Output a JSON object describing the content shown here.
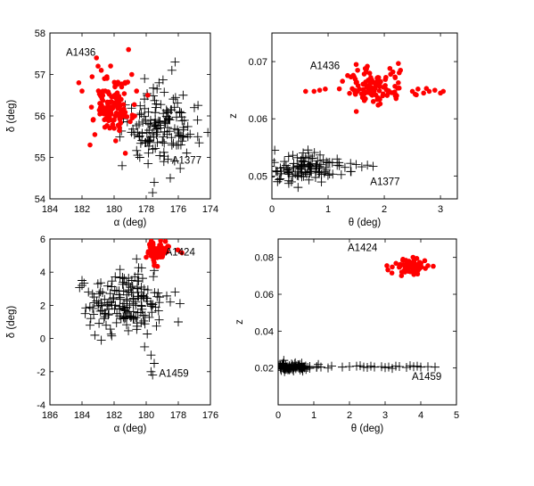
{
  "chart_data": [
    {
      "type": "scatter",
      "xlabel": "α (deg)",
      "ylabel": "δ (deg)",
      "xlim": [
        184,
        174
      ],
      "ylim": [
        54,
        58
      ],
      "xticks": [
        184,
        182,
        180,
        178,
        176,
        174
      ],
      "yticks": [
        54,
        55,
        56,
        57,
        58
      ],
      "annotations": [
        {
          "text": "A1436",
          "x": 183.0,
          "y": 57.45
        },
        {
          "text": "A1377",
          "x": 176.4,
          "y": 54.85
        }
      ],
      "series": [
        {
          "marker": "dot",
          "color": "#ff0000",
          "cluster": {
            "cx": 180.1,
            "cy": 56.25,
            "sx": 0.55,
            "sy": 0.35,
            "n": 120,
            "seed": 11
          },
          "extra_points": [
            [
              181.1,
              57.4
            ],
            [
              181.0,
              57.2
            ],
            [
              180.8,
              57.1
            ],
            [
              179.1,
              57.6
            ],
            [
              180.6,
              56.9
            ],
            [
              182.0,
              56.6
            ],
            [
              181.5,
              55.3
            ],
            [
              181.2,
              55.55
            ],
            [
              179.9,
              55.4
            ],
            [
              179.3,
              55.1
            ],
            [
              178.6,
              56.6
            ],
            [
              177.9,
              56.5
            ],
            [
              178.9,
              57.0
            ],
            [
              182.2,
              56.8
            ],
            [
              180.3,
              55.9
            ]
          ]
        },
        {
          "marker": "plus",
          "color": "#000000",
          "cluster": {
            "cx": 177.0,
            "cy": 55.7,
            "sx": 1.05,
            "sy": 0.38,
            "n": 140,
            "seed": 23
          },
          "extra_points": [
            [
              176.2,
              57.3
            ],
            [
              176.4,
              57.1
            ],
            [
              177.2,
              56.8
            ],
            [
              178.1,
              56.9
            ],
            [
              175.0,
              56.2
            ],
            [
              174.8,
              55.9
            ],
            [
              175.4,
              55.5
            ],
            [
              177.5,
              54.4
            ],
            [
              177.6,
              54.15
            ],
            [
              176.5,
              54.5
            ],
            [
              179.5,
              54.8
            ],
            [
              176.9,
              54.9
            ],
            [
              175.7,
              56.5
            ],
            [
              178.4,
              55.0
            ]
          ]
        }
      ]
    },
    {
      "type": "scatter",
      "xlabel": "θ (deg)",
      "ylabel": "z",
      "xlim": [
        0,
        3.3
      ],
      "ylim": [
        0.046,
        0.075
      ],
      "xticks": [
        0,
        1,
        2,
        3
      ],
      "yticks": [
        0.05,
        0.06,
        0.07
      ],
      "ytick_labels": [
        "0.05",
        "0.06",
        "0.07"
      ],
      "annotations": [
        {
          "text": "A1436",
          "x": 0.68,
          "y": 0.0687
        },
        {
          "text": "A1377",
          "x": 1.75,
          "y": 0.0484
        }
      ],
      "series": [
        {
          "marker": "dot",
          "color": "#ff0000",
          "cluster": {
            "cx": 1.8,
            "cy": 0.0655,
            "sx": 0.28,
            "sy": 0.0017,
            "n": 110,
            "seed": 31
          },
          "extra_points": [
            [
              0.6,
              0.0648
            ],
            [
              0.75,
              0.0648
            ],
            [
              0.85,
              0.065
            ],
            [
              0.95,
              0.0652
            ],
            [
              2.5,
              0.0648
            ],
            [
              2.6,
              0.0652
            ],
            [
              2.7,
              0.0645
            ],
            [
              2.8,
              0.0648
            ],
            [
              2.9,
              0.065
            ],
            [
              3.0,
              0.0645
            ],
            [
              3.05,
              0.0648
            ],
            [
              2.55,
              0.0643
            ],
            [
              2.75,
              0.0653
            ],
            [
              1.5,
              0.0695
            ],
            [
              2.1,
              0.0688
            ]
          ]
        },
        {
          "marker": "plus",
          "color": "#000000",
          "cluster": {
            "cx": 0.55,
            "cy": 0.0515,
            "sx": 0.4,
            "sy": 0.0013,
            "n": 110,
            "seed": 43
          },
          "extra_points": [
            [
              1.0,
              0.0523
            ],
            [
              1.2,
              0.0518
            ],
            [
              1.3,
              0.0515
            ],
            [
              1.4,
              0.0522
            ],
            [
              1.5,
              0.052
            ],
            [
              1.6,
              0.0516
            ],
            [
              1.7,
              0.0519
            ],
            [
              1.8,
              0.0517
            ],
            [
              0.05,
              0.0545
            ],
            [
              0.1,
              0.049
            ],
            [
              0.3,
              0.0487
            ],
            [
              0.45,
              0.0532
            ]
          ]
        }
      ]
    },
    {
      "type": "scatter",
      "xlabel": "α (deg)",
      "ylabel": "δ (deg)",
      "xlim": [
        186,
        176
      ],
      "ylim": [
        -4,
        6
      ],
      "xticks": [
        186,
        184,
        182,
        180,
        178,
        176
      ],
      "yticks": [
        -4,
        -2,
        0,
        2,
        4,
        6
      ],
      "annotations": [
        {
          "text": "A1424",
          "x": 178.8,
          "y": 5.0
        },
        {
          "text": "A1459",
          "x": 179.2,
          "y": -2.3
        }
      ],
      "series": [
        {
          "marker": "dot",
          "color": "#ff0000",
          "cluster": {
            "cx": 179.3,
            "cy": 5.2,
            "sx": 0.38,
            "sy": 0.28,
            "n": 70,
            "seed": 57
          },
          "extra_points": [
            [
              179.5,
              4.4
            ],
            [
              178.8,
              5.85
            ],
            [
              179.1,
              5.9
            ],
            [
              180.0,
              4.9
            ],
            [
              178.7,
              5.5
            ]
          ]
        },
        {
          "marker": "plus",
          "color": "#000000",
          "cluster": {
            "cx": 181.1,
            "cy": 2.0,
            "sx": 1.1,
            "sy": 0.85,
            "n": 160,
            "seed": 67
          },
          "extra_points": [
            [
              184.0,
              3.5
            ],
            [
              184.0,
              3.2
            ],
            [
              183.6,
              2.8
            ],
            [
              183.8,
              1.5
            ],
            [
              183.5,
              0.8
            ],
            [
              183.2,
              0.2
            ],
            [
              182.8,
              -0.1
            ],
            [
              182.5,
              0.8
            ],
            [
              179.7,
              -2.0
            ],
            [
              179.5,
              -1.5
            ],
            [
              179.6,
              -2.2
            ],
            [
              180.1,
              -0.5
            ],
            [
              179.7,
              -1.0
            ],
            [
              180.6,
              4.8
            ],
            [
              180.9,
              3.5
            ],
            [
              178.2,
              2.8
            ],
            [
              178.0,
              1.0
            ],
            [
              178.5,
              2.2
            ],
            [
              179.5,
              4.1
            ],
            [
              180.3,
              3.1
            ]
          ]
        }
      ]
    },
    {
      "type": "scatter",
      "xlabel": "θ (deg)",
      "ylabel": "z",
      "xlim": [
        0,
        5
      ],
      "ylim": [
        0,
        0.09
      ],
      "xticks": [
        0,
        1,
        2,
        3,
        4,
        5
      ],
      "yticks": [
        0.02,
        0.04,
        0.06,
        0.08
      ],
      "ytick_labels": [
        "0.02",
        "0.04",
        "0.06",
        "0.08"
      ],
      "annotations": [
        {
          "text": "A1424",
          "x": 1.95,
          "y": 0.0835
        },
        {
          "text": "A1459",
          "x": 3.75,
          "y": 0.0135
        }
      ],
      "series": [
        {
          "marker": "dot",
          "color": "#ff0000",
          "cluster": {
            "cx": 3.7,
            "cy": 0.0755,
            "sx": 0.2,
            "sy": 0.0022,
            "n": 60,
            "seed": 79
          },
          "extra_points": [
            [
              3.05,
              0.0755
            ],
            [
              3.2,
              0.0748
            ],
            [
              4.2,
              0.0755
            ],
            [
              4.35,
              0.0752
            ],
            [
              3.5,
              0.079
            ],
            [
              3.8,
              0.072
            ]
          ]
        },
        {
          "marker": "plus",
          "color": "#000000",
          "cluster": {
            "cx": 0.45,
            "cy": 0.0205,
            "sx": 0.32,
            "sy": 0.0012,
            "n": 90,
            "seed": 89
          },
          "extra_points": [
            [
              1.2,
              0.0205
            ],
            [
              1.5,
              0.021
            ],
            [
              1.8,
              0.0205
            ],
            [
              2.0,
              0.0208
            ],
            [
              2.2,
              0.021
            ],
            [
              2.4,
              0.0205
            ],
            [
              2.5,
              0.0203
            ],
            [
              2.6,
              0.021
            ],
            [
              2.7,
              0.0205
            ],
            [
              2.9,
              0.0207
            ],
            [
              3.0,
              0.0202
            ],
            [
              3.1,
              0.0205
            ],
            [
              3.3,
              0.021
            ],
            [
              3.4,
              0.0208
            ],
            [
              3.6,
              0.0203
            ],
            [
              3.8,
              0.0207
            ],
            [
              3.9,
              0.021
            ],
            [
              4.0,
              0.0205
            ],
            [
              4.2,
              0.0207
            ],
            [
              4.4,
              0.0205
            ],
            [
              1.4,
              0.02
            ],
            [
              2.3,
              0.0212
            ],
            [
              3.2,
              0.0198
            ],
            [
              3.7,
              0.0212
            ]
          ]
        }
      ]
    }
  ]
}
